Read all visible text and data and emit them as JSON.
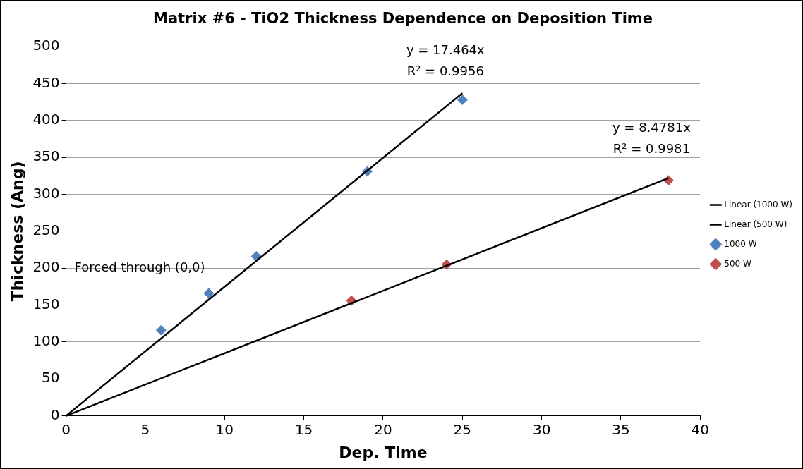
{
  "chart_data": {
    "type": "scatter",
    "title": "Matrix #6 - TiO2 Thickness Dependence on Deposition Time",
    "xlabel": "Dep. Time",
    "ylabel": "Thickness (Ang)",
    "xlim": [
      0,
      40
    ],
    "xticks": [
      0,
      5,
      10,
      15,
      20,
      25,
      30,
      35,
      40
    ],
    "ylim": [
      0,
      500
    ],
    "yticks": [
      0,
      50,
      100,
      150,
      200,
      250,
      300,
      350,
      400,
      450,
      500
    ],
    "grid": "y",
    "legend": "right",
    "series": [
      {
        "name": "1000 W",
        "marker": "diamond",
        "color": "#4f81bd",
        "x": [
          6,
          9,
          12,
          19,
          25
        ],
        "values": [
          116,
          166,
          216,
          331,
          428
        ]
      },
      {
        "name": "500 W",
        "marker": "diamond",
        "color": "#c0504d",
        "x": [
          18,
          24,
          38
        ],
        "values": [
          156,
          205,
          319
        ]
      },
      {
        "name": "Linear (1000 W)",
        "type": "line",
        "marker": "none",
        "color": "#000000",
        "line_style": "solid",
        "x": [
          0,
          25
        ],
        "values": [
          0,
          437
        ]
      },
      {
        "name": "Linear (500 W)",
        "type": "line",
        "marker": "none",
        "color": "#000000",
        "line_style": "solid",
        "x": [
          0,
          38
        ],
        "values": [
          0,
          322
        ]
      }
    ],
    "annotations": [
      "y = 17.464x",
      "R² = 0.9956",
      "y = 8.4781x",
      "R² = 0.9981",
      "Forced through (0,0)"
    ]
  }
}
